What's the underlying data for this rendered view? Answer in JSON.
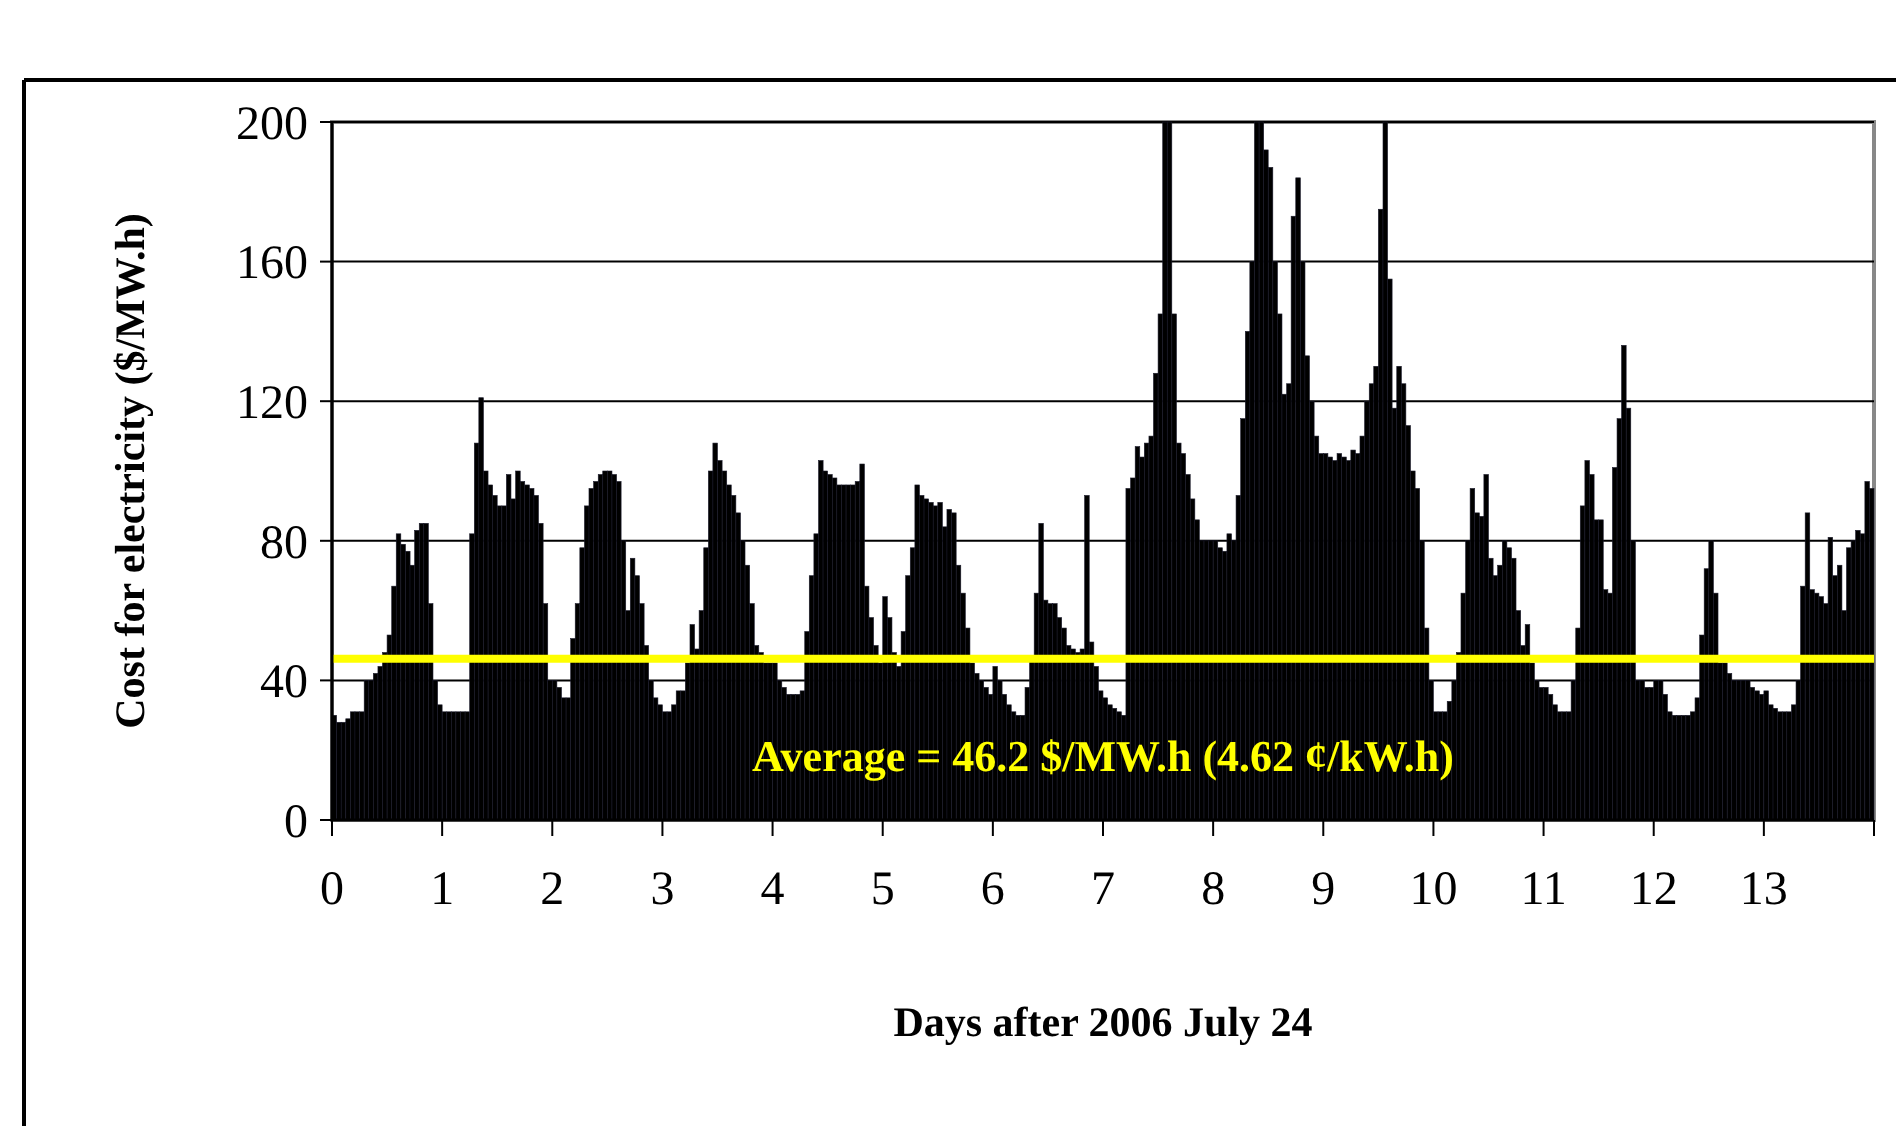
{
  "chart_data": {
    "type": "bar",
    "xlabel": "Days after 2006 July 24",
    "ylabel": "Cost for electricity ($/MW.h)",
    "x": [
      0.021,
      0.063,
      0.104,
      0.146,
      0.188,
      0.229,
      0.271,
      0.313,
      0.354,
      0.396,
      0.438,
      0.479,
      0.521,
      0.563,
      0.604,
      0.646,
      0.688,
      0.729,
      0.771,
      0.813,
      0.854,
      0.896,
      0.938,
      0.979,
      1.021,
      1.063,
      1.104,
      1.146,
      1.188,
      1.229,
      1.271,
      1.313,
      1.354,
      1.396,
      1.438,
      1.479,
      1.521,
      1.563,
      1.604,
      1.646,
      1.688,
      1.729,
      1.771,
      1.813,
      1.854,
      1.896,
      1.938,
      1.979,
      2.021,
      2.063,
      2.104,
      2.146,
      2.188,
      2.229,
      2.271,
      2.313,
      2.354,
      2.396,
      2.438,
      2.479,
      2.521,
      2.563,
      2.604,
      2.646,
      2.688,
      2.729,
      2.771,
      2.813,
      2.854,
      2.896,
      2.938,
      2.979,
      3.021,
      3.063,
      3.104,
      3.146,
      3.188,
      3.229,
      3.271,
      3.313,
      3.354,
      3.396,
      3.438,
      3.479,
      3.521,
      3.563,
      3.604,
      3.646,
      3.688,
      3.729,
      3.771,
      3.813,
      3.854,
      3.896,
      3.938,
      3.979,
      4.021,
      4.063,
      4.104,
      4.146,
      4.188,
      4.229,
      4.271,
      4.313,
      4.354,
      4.396,
      4.438,
      4.479,
      4.521,
      4.563,
      4.604,
      4.646,
      4.688,
      4.729,
      4.771,
      4.813,
      4.854,
      4.896,
      4.938,
      4.979,
      5.021,
      5.063,
      5.104,
      5.146,
      5.188,
      5.229,
      5.271,
      5.313,
      5.354,
      5.396,
      5.438,
      5.479,
      5.521,
      5.563,
      5.604,
      5.646,
      5.688,
      5.729,
      5.771,
      5.813,
      5.854,
      5.896,
      5.938,
      5.979,
      6.021,
      6.063,
      6.104,
      6.146,
      6.188,
      6.229,
      6.271,
      6.313,
      6.354,
      6.396,
      6.438,
      6.479,
      6.521,
      6.563,
      6.604,
      6.646,
      6.688,
      6.729,
      6.771,
      6.813,
      6.854,
      6.896,
      6.938,
      6.979,
      7.021,
      7.063,
      7.104,
      7.146,
      7.188,
      7.229,
      7.271,
      7.313,
      7.354,
      7.396,
      7.438,
      7.479,
      7.521,
      7.563,
      7.604,
      7.646,
      7.688,
      7.729,
      7.771,
      7.813,
      7.854,
      7.896,
      7.938,
      7.979,
      8.021,
      8.063,
      8.104,
      8.146,
      8.188,
      8.229,
      8.271,
      8.313,
      8.354,
      8.396,
      8.438,
      8.479,
      8.521,
      8.563,
      8.604,
      8.646,
      8.688,
      8.729,
      8.771,
      8.813,
      8.854,
      8.896,
      8.938,
      8.979,
      9.021,
      9.063,
      9.104,
      9.146,
      9.188,
      9.229,
      9.271,
      9.313,
      9.354,
      9.396,
      9.438,
      9.479,
      9.521,
      9.563,
      9.604,
      9.646,
      9.688,
      9.729,
      9.771,
      9.813,
      9.854,
      9.896,
      9.938,
      9.979,
      10.021,
      10.063,
      10.104,
      10.146,
      10.188,
      10.229,
      10.271,
      10.313,
      10.354,
      10.396,
      10.438,
      10.479,
      10.521,
      10.563,
      10.604,
      10.646,
      10.688,
      10.729,
      10.771,
      10.813,
      10.854,
      10.896,
      10.938,
      10.979,
      11.021,
      11.063,
      11.104,
      11.146,
      11.188,
      11.229,
      11.271,
      11.313,
      11.354,
      11.396,
      11.438,
      11.479,
      11.521,
      11.563,
      11.604,
      11.646,
      11.688,
      11.729,
      11.771,
      11.813,
      11.854,
      11.896,
      11.938,
      11.979,
      12.021,
      12.063,
      12.104,
      12.146,
      12.188,
      12.229,
      12.271,
      12.313,
      12.354,
      12.396,
      12.438,
      12.479,
      12.521,
      12.563,
      12.604,
      12.646,
      12.688,
      12.729,
      12.771,
      12.813,
      12.854,
      12.896,
      12.938,
      12.979,
      13.021,
      13.063,
      13.104,
      13.146,
      13.188,
      13.229,
      13.271,
      13.313,
      13.354,
      13.396,
      13.438,
      13.479,
      13.521,
      13.563,
      13.604,
      13.646,
      13.688,
      13.729,
      13.771,
      13.813,
      13.854,
      13.896,
      13.938,
      13.979
    ],
    "values": [
      30,
      28,
      28,
      29,
      31,
      31,
      31,
      40,
      40,
      42,
      44,
      48,
      53,
      67,
      82,
      79,
      77,
      73,
      83,
      85,
      85,
      62,
      40,
      33,
      31,
      31,
      31,
      31,
      31,
      31,
      82,
      108,
      121,
      100,
      96,
      93,
      90,
      90,
      99,
      92,
      100,
      97,
      96,
      95,
      93,
      85,
      62,
      40,
      40,
      38,
      35,
      35,
      52,
      62,
      78,
      90,
      95,
      97,
      99,
      100,
      100,
      99,
      97,
      80,
      60,
      75,
      70,
      62,
      50,
      40,
      35,
      33,
      31,
      31,
      33,
      37,
      37,
      45,
      56,
      49,
      60,
      78,
      100,
      108,
      103,
      100,
      96,
      93,
      88,
      80,
      73,
      62,
      50,
      48,
      45,
      45,
      45,
      40,
      38,
      36,
      36,
      36,
      37,
      54,
      70,
      82,
      103,
      100,
      99,
      98,
      96,
      96,
      96,
      96,
      97,
      102,
      67,
      58,
      50,
      45,
      64,
      58,
      48,
      44,
      54,
      70,
      78,
      96,
      93,
      92,
      91,
      90,
      91,
      84,
      89,
      88,
      73,
      65,
      55,
      45,
      42,
      40,
      38,
      36,
      44,
      40,
      36,
      33,
      31,
      30,
      30,
      38,
      46,
      65,
      85,
      63,
      62,
      62,
      58,
      55,
      50,
      49,
      48,
      49,
      93,
      51,
      44,
      37,
      35,
      33,
      32,
      31,
      30,
      95,
      98,
      107,
      104,
      108,
      110,
      128,
      145,
      200,
      200,
      145,
      108,
      105,
      99,
      92,
      86,
      80,
      80,
      80,
      80,
      78,
      77,
      82,
      80,
      93,
      115,
      140,
      160,
      200,
      200,
      192,
      187,
      160,
      145,
      122,
      125,
      173,
      184,
      160,
      133,
      120,
      110,
      105,
      105,
      104,
      103,
      105,
      104,
      103,
      106,
      105,
      110,
      120,
      125,
      130,
      175,
      200,
      155,
      118,
      130,
      125,
      113,
      100,
      95,
      80,
      55,
      40,
      31,
      31,
      31,
      34,
      40,
      48,
      65,
      80,
      95,
      88,
      87,
      99,
      75,
      70,
      73,
      80,
      78,
      75,
      60,
      50,
      56,
      45,
      40,
      38,
      38,
      36,
      33,
      31,
      31,
      31,
      40,
      55,
      90,
      103,
      99,
      86,
      86,
      66,
      65,
      101,
      115,
      136,
      118,
      80,
      40,
      40,
      38,
      38,
      40,
      40,
      36,
      31,
      30,
      30,
      30,
      30,
      31,
      35,
      53,
      72,
      80,
      65,
      45,
      45,
      42,
      40,
      40,
      40,
      40,
      38,
      37,
      36,
      37,
      33,
      32,
      31,
      31,
      31,
      33,
      40,
      67,
      88,
      66,
      65,
      64,
      62,
      81,
      70,
      73,
      60,
      78,
      80,
      83,
      82,
      97,
      95
    ],
    "color": "#000000",
    "xlim": [
      0,
      14
    ],
    "xticks": [
      0,
      1,
      2,
      3,
      4,
      5,
      6,
      7,
      8,
      9,
      10,
      11,
      12,
      13,
      {
        "value": 14,
        "label": null
      }
    ],
    "ylim": [
      0,
      200
    ],
    "yticks": [
      0,
      40,
      80,
      120,
      160,
      200
    ],
    "grid": "y",
    "ref_lines": [
      {
        "axis": "y",
        "value": 46.2,
        "label": "Average = 46.2 $/MW.h (4.62 ¢/kW.h)",
        "color": "#ffff00"
      }
    ]
  }
}
